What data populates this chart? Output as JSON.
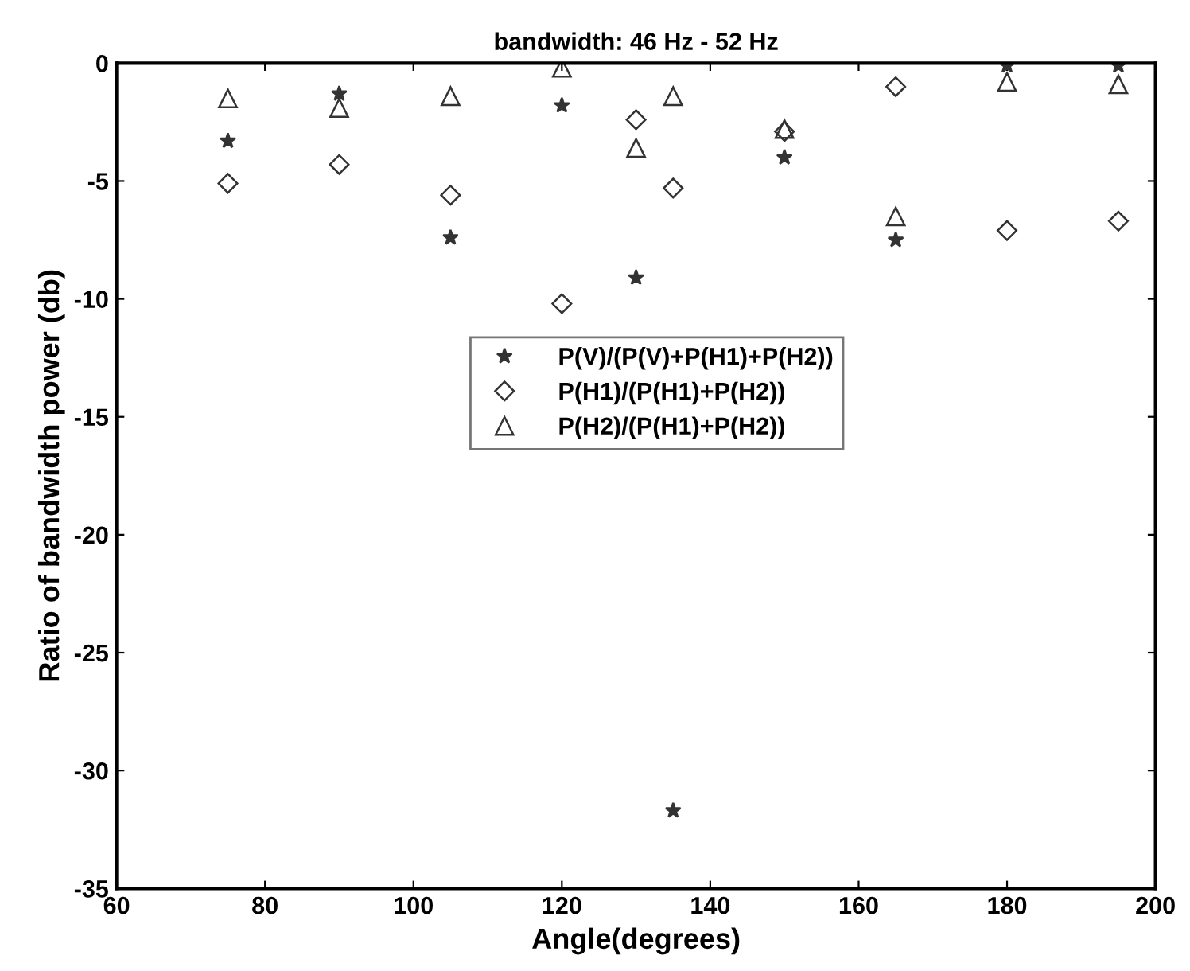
{
  "chart_data": {
    "type": "scatter",
    "title": "bandwidth: 46 Hz - 52 Hz",
    "xlabel": "Angle(degrees)",
    "ylabel": "Ratio of bandwidth power (db)",
    "x": [
      75,
      90,
      105,
      120,
      130,
      135,
      150,
      165,
      180,
      195
    ],
    "series": [
      {
        "name": "P(V)/(P(V)+P(H1)+P(H2))",
        "color": "#333333",
        "marker": "star",
        "values": [
          -3.3,
          -1.3,
          -7.4,
          -1.8,
          -9.1,
          -31.7,
          -4.0,
          -7.5,
          -0.1,
          -0.1
        ]
      },
      {
        "name": "P(H1)/(P(H1)+P(H2))",
        "color": "#333333",
        "marker": "diamond",
        "values": [
          -5.1,
          -4.3,
          -5.6,
          -10.2,
          -2.4,
          -5.3,
          -2.9,
          -1.0,
          -7.1,
          -6.7
        ]
      },
      {
        "name": "P(H2)/(P(H1)+P(H2))",
        "color": "#333333",
        "marker": "triangle",
        "values": [
          -1.5,
          -1.9,
          -1.4,
          -0.2,
          -3.6,
          -1.4,
          -2.8,
          -6.5,
          -0.8,
          -0.9
        ]
      }
    ],
    "xlim": [
      60,
      200
    ],
    "xticks": [
      60,
      80,
      100,
      120,
      140,
      160,
      180,
      200
    ],
    "ylim": [
      -35,
      0
    ],
    "yticks": [
      -35,
      -30,
      -25,
      -20,
      -15,
      -10,
      -5,
      0
    ],
    "legend": "center",
    "grid": false
  }
}
